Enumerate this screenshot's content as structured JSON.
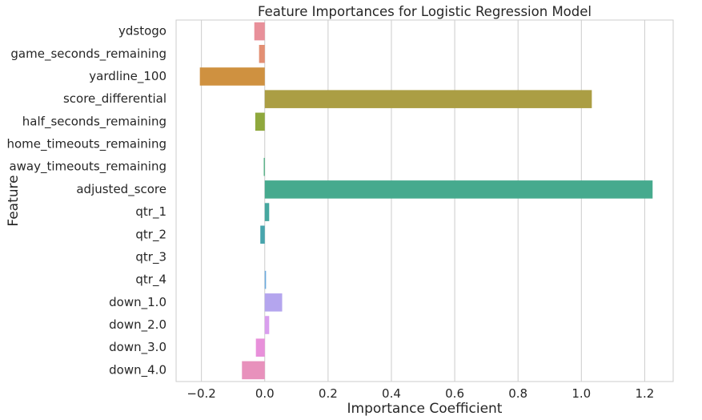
{
  "chart_data": {
    "type": "bar",
    "orientation": "horizontal",
    "title": "Feature Importances for Logistic Regression Model",
    "xlabel": "Importance Coefficient",
    "ylabel": "Feature",
    "xlim": [
      -0.28,
      1.29
    ],
    "xticks": [
      -0.2,
      0.0,
      0.2,
      0.4,
      0.6,
      0.8,
      1.0,
      1.2
    ],
    "xtick_labels": [
      "−0.2",
      "0.0",
      "0.2",
      "0.4",
      "0.6",
      "0.8",
      "1.0",
      "1.2"
    ],
    "grid": "vertical",
    "categories": [
      "ydstogo",
      "game_seconds_remaining",
      "yardline_100",
      "score_differential",
      "half_seconds_remaining",
      "home_timeouts_remaining",
      "away_timeouts_remaining",
      "adjusted_score",
      "qtr_1",
      "qtr_2",
      "qtr_3",
      "qtr_4",
      "down_1.0",
      "down_2.0",
      "down_3.0",
      "down_4.0"
    ],
    "values": [
      -0.033,
      -0.018,
      -0.205,
      1.033,
      -0.03,
      0.0,
      -0.003,
      1.225,
      0.014,
      -0.014,
      0.0,
      0.004,
      0.055,
      0.014,
      -0.028,
      -0.072
    ],
    "colors": [
      "#e8909a",
      "#e38f73",
      "#cf9140",
      "#ab9e44",
      "#8fa83d",
      "#5daa4a",
      "#3eaa78",
      "#46aa8e",
      "#46a79f",
      "#48a5ad",
      "#4ca5c2",
      "#6aaade",
      "#b4a5ee",
      "#d99eee",
      "#e890da",
      "#e891bc"
    ]
  }
}
